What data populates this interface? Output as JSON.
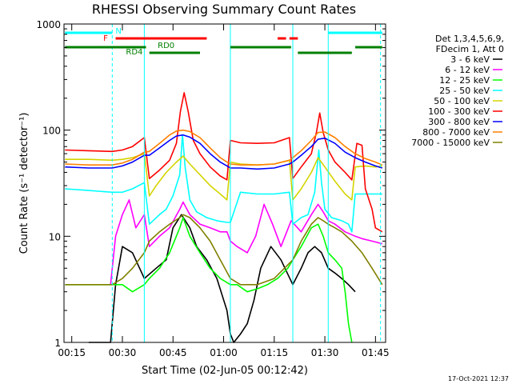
{
  "chart_data": {
    "type": "line",
    "title": "RHESSI Observing Summary Count Rates",
    "xlabel": "Start Time (02-Jun-05 00:12:42)",
    "ylabel": "Count Rate (s⁻¹ detector⁻¹)",
    "yscale": "log",
    "ylim": [
      1,
      1000
    ],
    "xlim": [
      12.7,
      108
    ],
    "x_unit": "minutes after 00:00 UT",
    "x_ticks": [
      15,
      30,
      45,
      60,
      75,
      90,
      105
    ],
    "x_tick_labels": [
      "00:15",
      "00:30",
      "00:45",
      "01:00",
      "01:15",
      "01:30",
      "01:45"
    ],
    "y_ticks": [
      1,
      10,
      100,
      1000
    ],
    "y_tick_labels": [
      "1",
      "10",
      "100",
      "1000"
    ],
    "timestamp": "17-Oct-2021 12:37",
    "legend": {
      "header": [
        "Det 1,3,4,5,6,9,",
        "FDecim 1, Att 0"
      ],
      "entries": [
        {
          "name": "3 - 6 keV",
          "color": "#000000"
        },
        {
          "name": "6 - 12 keV",
          "color": "#ff00ff"
        },
        {
          "name": "12 - 25 keV",
          "color": "#00ff00"
        },
        {
          "name": "25 - 50 keV",
          "color": "#00ffff"
        },
        {
          "name": "50 - 100 keV",
          "color": "#d4d400"
        },
        {
          "name": "100 - 300 keV",
          "color": "#ff0000"
        },
        {
          "name": "300 - 800 keV",
          "color": "#0000ff"
        },
        {
          "name": "800 - 7000 keV",
          "color": "#ff8000"
        },
        {
          "name": "7000 - 15000 keV",
          "color": "#808000"
        }
      ]
    },
    "flag_labels": [
      {
        "text": "N",
        "color": "#00ffff",
        "x": 27
      },
      {
        "text": "F",
        "color": "#ff0000",
        "x": 26
      },
      {
        "text": "RD0",
        "color": "#008000",
        "x": 40
      },
      {
        "text": "RD4",
        "color": "#008000",
        "x": 32
      }
    ],
    "flag_bars": [
      {
        "name": "night",
        "color": "#00ffff",
        "row": 1,
        "x": [
          [
            13,
            27
          ],
          [
            91,
            107
          ]
        ]
      },
      {
        "name": "flare",
        "color": "#ff0000",
        "row": 2,
        "x": [
          [
            28,
            55
          ],
          [
            76,
            78.5
          ],
          [
            79.5,
            82
          ]
        ]
      },
      {
        "name": "decimation-rd0",
        "color": "#008000",
        "row": 3,
        "x": [
          [
            13,
            37
          ],
          [
            62,
            80
          ],
          [
            99,
            107
          ]
        ]
      },
      {
        "name": "decimation-rd4",
        "color": "#008000",
        "row": 4,
        "x": [
          [
            38,
            53
          ],
          [
            82,
            98
          ]
        ]
      }
    ],
    "vertical_markers": [
      {
        "x": 27,
        "style": "dashed",
        "color": "#00ffff"
      },
      {
        "x": 36.5,
        "style": "solid",
        "color": "#00ffff"
      },
      {
        "x": 62,
        "style": "solid",
        "color": "#00ffff"
      },
      {
        "x": 80.5,
        "style": "solid",
        "color": "#00ffff"
      },
      {
        "x": 91,
        "style": "solid",
        "color": "#00ffff"
      },
      {
        "x": 106.5,
        "style": "dashed",
        "color": "#00ffff"
      }
    ],
    "series": [
      {
        "name": "3 - 6 keV",
        "color": "#000000",
        "x": [
          20,
          26.5,
          28,
          30,
          33,
          36.5,
          40,
          43,
          45,
          47.5,
          50,
          52,
          55,
          58,
          61,
          62,
          63,
          65,
          67,
          69,
          71,
          74,
          77,
          80.5,
          83,
          85,
          87,
          89,
          91,
          93,
          95,
          97,
          99
        ],
        "y": [
          1,
          1,
          3.5,
          8,
          7,
          4,
          5,
          6,
          12,
          16,
          12,
          8,
          6,
          4,
          2,
          1.2,
          1,
          1.2,
          1.5,
          2.5,
          5,
          8,
          6,
          3.5,
          5,
          7,
          8,
          7,
          5,
          4.5,
          4,
          3.5,
          3
        ]
      },
      {
        "name": "6 - 12 keV",
        "color": "#ff00ff",
        "x": [
          26.5,
          28,
          30,
          32,
          34,
          36.5,
          38,
          41,
          44,
          47,
          48,
          50,
          53,
          56,
          59,
          61,
          62,
          64,
          67,
          69.5,
          72,
          74.5,
          77,
          80,
          83,
          86,
          88,
          89.5,
          91,
          93,
          96,
          99,
          101,
          104,
          107
        ],
        "y": [
          3.5,
          10,
          16,
          22,
          12,
          16,
          8,
          10,
          12,
          18,
          21,
          16,
          13,
          12,
          11,
          11,
          9,
          8,
          7,
          10,
          20,
          13,
          8,
          14,
          11,
          16,
          20,
          17,
          14,
          13,
          11,
          10,
          9.5,
          9,
          8.5
        ]
      },
      {
        "name": "12 - 25 keV",
        "color": "#00ff00",
        "x": [
          13,
          20,
          27,
          30,
          33,
          36.5,
          38,
          41,
          44,
          47,
          48,
          50,
          53,
          56,
          59,
          62,
          64,
          67,
          70,
          73,
          76,
          79,
          80.5,
          83,
          86,
          88,
          89.5,
          91,
          93,
          95,
          96,
          97,
          98
        ],
        "y": [
          3.5,
          3.5,
          3.5,
          3.5,
          3,
          3.5,
          4,
          5,
          7,
          12,
          15,
          10,
          7,
          5,
          4,
          3.5,
          3.5,
          3,
          3.2,
          3.5,
          4,
          5,
          6,
          8,
          12,
          13,
          10,
          7,
          6,
          5,
          3,
          1.5,
          1
        ]
      },
      {
        "name": "25 - 50 keV",
        "color": "#00ffff",
        "x": [
          13,
          20,
          27,
          30,
          33,
          36.5,
          38,
          41,
          43,
          45,
          47,
          47.8,
          48.6,
          50,
          52,
          55,
          58,
          61,
          62,
          65,
          70,
          75,
          79.5,
          80.5,
          83,
          85,
          87,
          88.2,
          89,
          90,
          92,
          95,
          97,
          98,
          99,
          102,
          105,
          107
        ],
        "y": [
          28,
          27,
          26,
          26,
          28,
          32,
          13,
          16,
          18,
          24,
          38,
          90,
          45,
          22,
          17,
          15,
          14,
          13.5,
          13.5,
          26,
          25,
          25,
          26,
          13,
          15,
          16,
          26,
          65,
          32,
          18,
          15,
          14,
          13,
          11,
          25,
          25,
          25,
          25
        ]
      },
      {
        "name": "50 - 100 keV",
        "color": "#d4d400",
        "x": [
          13,
          20,
          27,
          30,
          33,
          36.5,
          38,
          40,
          43,
          46,
          48,
          50,
          53,
          56,
          59,
          61,
          62,
          65,
          70,
          75,
          79.5,
          80.5,
          83,
          86,
          88,
          90,
          93,
          96,
          98,
          99,
          102,
          105,
          107
        ],
        "y": [
          53,
          53,
          52,
          53,
          55,
          60,
          24,
          30,
          40,
          50,
          57,
          48,
          38,
          30,
          25,
          22,
          50,
          48,
          47,
          48,
          52,
          22,
          28,
          40,
          55,
          45,
          33,
          25,
          22,
          45,
          46,
          45,
          46
        ]
      },
      {
        "name": "100 - 300 keV",
        "color": "#ff0000",
        "x": [
          13,
          20,
          27,
          30,
          33,
          36.5,
          38,
          41,
          44,
          46,
          47.2,
          48.3,
          49.5,
          51,
          53,
          56,
          59,
          61,
          62,
          65,
          70,
          75,
          79.5,
          80.5,
          83,
          86,
          87.5,
          88.5,
          89.5,
          91,
          93,
          96,
          98,
          99.5,
          101,
          102,
          104,
          105,
          107
        ],
        "y": [
          65,
          64,
          63,
          65,
          70,
          85,
          35,
          42,
          52,
          75,
          150,
          225,
          150,
          80,
          60,
          45,
          37,
          34,
          80,
          76,
          75,
          76,
          85,
          35,
          45,
          60,
          95,
          145,
          95,
          65,
          50,
          40,
          34,
          75,
          72,
          28,
          18,
          12,
          11
        ]
      },
      {
        "name": "300 - 800 keV",
        "color": "#0000ff",
        "x": [
          13,
          20,
          27,
          30,
          33,
          36.5,
          38,
          41,
          44,
          46,
          48,
          50,
          53,
          56,
          59,
          61,
          62,
          65,
          70,
          75,
          79.5,
          80.5,
          83,
          86,
          88,
          90,
          93,
          96,
          99,
          102,
          105,
          107
        ],
        "y": [
          45,
          44,
          44,
          46,
          50,
          58,
          58,
          68,
          80,
          88,
          90,
          86,
          75,
          60,
          50,
          46,
          44,
          44,
          43,
          44,
          48,
          50,
          58,
          70,
          82,
          84,
          75,
          62,
          55,
          50,
          46,
          44
        ]
      },
      {
        "name": "800 - 7000 keV",
        "color": "#ff8000",
        "x": [
          13,
          20,
          27,
          30,
          33,
          36.5,
          38,
          41,
          44,
          46,
          48,
          50,
          53,
          56,
          59,
          61,
          62,
          65,
          70,
          75,
          79.5,
          80.5,
          83,
          86,
          88,
          90,
          93,
          96,
          99,
          102,
          105,
          107
        ],
        "y": [
          48,
          47,
          47,
          49,
          53,
          62,
          63,
          75,
          90,
          98,
          100,
          97,
          85,
          68,
          55,
          50,
          48,
          47,
          47,
          48,
          52,
          55,
          64,
          80,
          95,
          96,
          85,
          70,
          60,
          54,
          50,
          47
        ]
      },
      {
        "name": "7000 - 15000 keV",
        "color": "#808000",
        "x": [
          13,
          20,
          27,
          30,
          33,
          36.5,
          38,
          41,
          44,
          47,
          48,
          50,
          53,
          56,
          59,
          62,
          65,
          70,
          75,
          80.5,
          83,
          86,
          88,
          89.5,
          91,
          93,
          95,
          98,
          101,
          104,
          107
        ],
        "y": [
          3.5,
          3.5,
          3.5,
          4,
          5,
          7,
          9,
          11,
          13,
          15,
          16,
          15,
          12,
          9,
          6,
          4,
          3.5,
          3.5,
          4,
          6,
          9,
          13,
          15,
          14,
          13,
          12,
          11,
          9,
          7,
          5,
          3.5
        ]
      }
    ]
  }
}
